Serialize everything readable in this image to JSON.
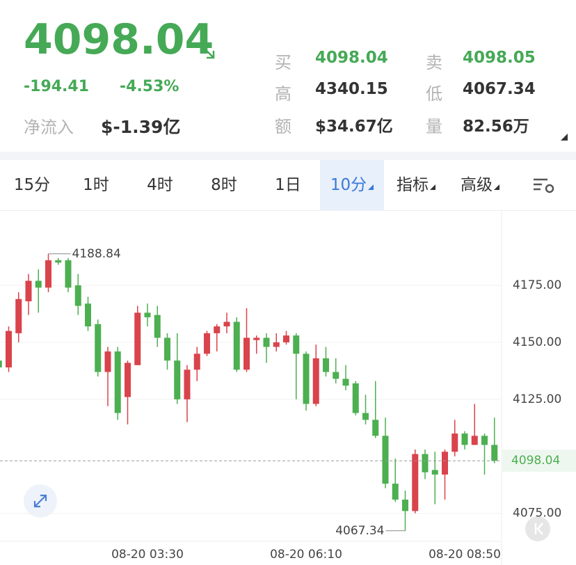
{
  "header": {
    "price": "4098.04",
    "change": "-194.41",
    "change_pct": "-4.53%",
    "net_inflow_label": "净流入",
    "net_inflow": "$-1.39亿",
    "stats": [
      {
        "label": "买",
        "value": "4098.04"
      },
      {
        "label": "卖",
        "value": "4098.05"
      },
      {
        "label": "高",
        "value": "4340.15"
      },
      {
        "label": "低",
        "value": "4067.34"
      },
      {
        "label": "额",
        "value": "$34.67亿"
      },
      {
        "label": "量",
        "value": "82.56万"
      }
    ]
  },
  "tabs": [
    "15分",
    "1时",
    "4时",
    "8时",
    "1日",
    "10分",
    "指标",
    "高级"
  ],
  "chart_data": {
    "type": "candlestick",
    "categories": [
      null,
      null,
      null,
      null,
      null,
      null,
      null,
      null,
      null,
      null,
      null,
      null,
      null,
      null,
      null,
      "08-20 03:30",
      null,
      null,
      null,
      null,
      null,
      null,
      null,
      null,
      null,
      null,
      null,
      null,
      null,
      null,
      null,
      "08-20 06:10",
      null,
      null,
      null,
      null,
      null,
      null,
      null,
      null,
      null,
      null,
      null,
      null,
      null,
      null,
      null,
      "08-20 08:50",
      null,
      null,
      null
    ],
    "open": [
      4142,
      4139,
      4154,
      4168,
      4177,
      4174,
      4186,
      4186,
      4175,
      4167,
      4158,
      4137,
      4146,
      4126,
      4140,
      4163,
      4162,
      4152,
      4142,
      4125,
      4138,
      4145,
      4154,
      4157,
      4159,
      4138,
      4151,
      4152,
      4148,
      4150,
      4153,
      4145,
      4123,
      4143,
      4137,
      4134,
      4132,
      4119,
      4116,
      4109,
      4088,
      4081,
      4076,
      4101,
      4094,
      4092,
      4102,
      4110,
      4105,
      4109,
      4105
    ],
    "high": [
      4143,
      4157,
      4172,
      4180,
      4182,
      4188.84,
      4187,
      4187,
      4180,
      4170,
      4160,
      4148,
      4148,
      4142,
      4166,
      4167,
      4166,
      4154,
      4154,
      4140,
      4148,
      4155,
      4158,
      4163,
      4161,
      4165,
      4153,
      4154,
      4154,
      4155,
      4154,
      4146,
      4149,
      4148,
      4143,
      4140,
      4133,
      4127,
      4133,
      4117,
      4099,
      4085,
      4103,
      4103,
      4102,
      4103,
      4116,
      4111,
      4123,
      4110,
      4117
    ],
    "low": [
      4138,
      4137,
      4150,
      4162,
      4163,
      4172,
      4184,
      4172,
      4162,
      4155,
      4135,
      4122,
      4116,
      4114,
      4140,
      4157,
      4148,
      4138,
      4123,
      4115,
      4133,
      4144,
      4146,
      4154,
      4137,
      4137,
      4145,
      4141,
      4146,
      4149,
      4125,
      4120,
      4122,
      4135,
      4132,
      4129,
      4118,
      4114,
      4108,
      4086,
      4080,
      4067.34,
      4075,
      4090,
      4079,
      4081,
      4100,
      4103,
      4105,
      4092,
      4097
    ],
    "close": [
      4139,
      4155,
      4169,
      4177,
      4174,
      4186,
      4185,
      4174,
      4166,
      4157,
      4137,
      4146,
      4119,
      4141,
      4163,
      4161,
      4152,
      4142,
      4125,
      4138,
      4145,
      4154,
      4157,
      4159,
      4138,
      4152,
      4152,
      4148,
      4150,
      4153,
      4145,
      4123,
      4143,
      4137,
      4134,
      4131,
      4119,
      4116,
      4109,
      4088,
      4081,
      4076,
      4101,
      4093,
      4092,
      4102,
      4110,
      4105,
      4109,
      4105,
      4098.04
    ],
    "up_color": "#d9434b",
    "down_color": "#4caf50",
    "ylim": [
      4063,
      4208
    ],
    "yticks": [
      {
        "value": 4075,
        "label": "4075.00"
      },
      {
        "value": 4125,
        "label": "4125.00"
      },
      {
        "value": 4150,
        "label": "4150.00"
      },
      {
        "value": 4175,
        "label": "4175.00"
      }
    ],
    "grid": true,
    "high_marker_index": 5,
    "low_marker_index": 41
  }
}
